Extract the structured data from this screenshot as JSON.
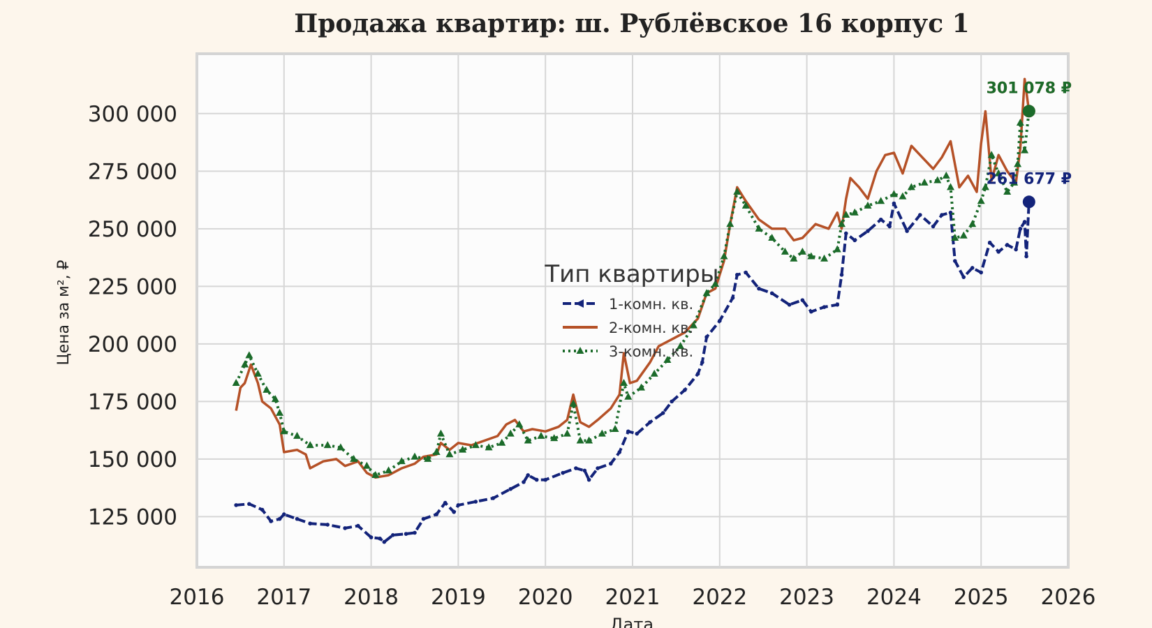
{
  "chart_data": {
    "type": "line",
    "title": "Продажа квартир: ш. Рублёвское 16 корпус 1",
    "xlabel": "Дата",
    "ylabel": "Цена за м², ₽",
    "xlim": [
      2016,
      2026
    ],
    "ylim": [
      103000,
      326000
    ],
    "x_ticks": [
      "2016",
      "2017",
      "2018",
      "2019",
      "2020",
      "2021",
      "2022",
      "2023",
      "2024",
      "2025",
      "2026"
    ],
    "y_ticks": [
      {
        "value": 125000,
        "label": "125 000"
      },
      {
        "value": 150000,
        "label": "150 000"
      },
      {
        "value": 175000,
        "label": "175 000"
      },
      {
        "value": 200000,
        "label": "200 000"
      },
      {
        "value": 225000,
        "label": "225 000"
      },
      {
        "value": 250000,
        "label": "250 000"
      },
      {
        "value": 275000,
        "label": "275 000"
      },
      {
        "value": 300000,
        "label": "300 000"
      }
    ],
    "grid": true,
    "legend": {
      "title": "Тип квартиры",
      "placement": "center"
    },
    "series": [
      {
        "name": "1-комн. кв.",
        "color": "#13237a",
        "style": "dashed-markers",
        "points": [
          [
            2016.45,
            130000
          ],
          [
            2016.6,
            130500
          ],
          [
            2016.75,
            128000
          ],
          [
            2016.85,
            123000
          ],
          [
            2016.95,
            124000
          ],
          [
            2017.0,
            126000
          ],
          [
            2017.15,
            124000
          ],
          [
            2017.3,
            122000
          ],
          [
            2017.5,
            121500
          ],
          [
            2017.7,
            120000
          ],
          [
            2017.85,
            121000
          ],
          [
            2018.0,
            116000
          ],
          [
            2018.1,
            115500
          ],
          [
            2018.15,
            114000
          ],
          [
            2018.25,
            117000
          ],
          [
            2018.4,
            117500
          ],
          [
            2018.5,
            118000
          ],
          [
            2018.6,
            124000
          ],
          [
            2018.75,
            126000
          ],
          [
            2018.85,
            131000
          ],
          [
            2018.95,
            127000
          ],
          [
            2019.0,
            130000
          ],
          [
            2019.2,
            131500
          ],
          [
            2019.4,
            133000
          ],
          [
            2019.6,
            137000
          ],
          [
            2019.75,
            140000
          ],
          [
            2019.8,
            143000
          ],
          [
            2019.9,
            141000
          ],
          [
            2020.0,
            141000
          ],
          [
            2020.2,
            144000
          ],
          [
            2020.35,
            146000
          ],
          [
            2020.45,
            145000
          ],
          [
            2020.5,
            141000
          ],
          [
            2020.6,
            146000
          ],
          [
            2020.75,
            148000
          ],
          [
            2020.85,
            153000
          ],
          [
            2020.95,
            162000
          ],
          [
            2021.05,
            161000
          ],
          [
            2021.2,
            166000
          ],
          [
            2021.35,
            170000
          ],
          [
            2021.45,
            175000
          ],
          [
            2021.6,
            180000
          ],
          [
            2021.75,
            187000
          ],
          [
            2021.8,
            192000
          ],
          [
            2021.85,
            203000
          ],
          [
            2022.0,
            210000
          ],
          [
            2022.15,
            220000
          ],
          [
            2022.2,
            230000
          ],
          [
            2022.3,
            231000
          ],
          [
            2022.45,
            224000
          ],
          [
            2022.6,
            222000
          ],
          [
            2022.8,
            217000
          ],
          [
            2022.95,
            219000
          ],
          [
            2023.05,
            214000
          ],
          [
            2023.2,
            216000
          ],
          [
            2023.35,
            217000
          ],
          [
            2023.4,
            230000
          ],
          [
            2023.45,
            248000
          ],
          [
            2023.55,
            245000
          ],
          [
            2023.7,
            249000
          ],
          [
            2023.85,
            254000
          ],
          [
            2023.95,
            251000
          ],
          [
            2024.0,
            261000
          ],
          [
            2024.15,
            249000
          ],
          [
            2024.3,
            256000
          ],
          [
            2024.45,
            251000
          ],
          [
            2024.55,
            256000
          ],
          [
            2024.65,
            257000
          ],
          [
            2024.7,
            236000
          ],
          [
            2024.8,
            229000
          ],
          [
            2024.9,
            233000
          ],
          [
            2025.0,
            231000
          ],
          [
            2025.1,
            244000
          ],
          [
            2025.2,
            240000
          ],
          [
            2025.3,
            243000
          ],
          [
            2025.4,
            241000
          ],
          [
            2025.45,
            250000
          ],
          [
            2025.5,
            253000
          ],
          [
            2025.52,
            238000
          ],
          [
            2025.55,
            261677
          ]
        ]
      },
      {
        "name": "2-комн. кв.",
        "color": "#b55127",
        "style": "solid",
        "points": [
          [
            2016.45,
            171000
          ],
          [
            2016.5,
            181000
          ],
          [
            2016.55,
            183000
          ],
          [
            2016.62,
            191000
          ],
          [
            2016.7,
            183000
          ],
          [
            2016.75,
            175000
          ],
          [
            2016.85,
            172000
          ],
          [
            2016.95,
            165000
          ],
          [
            2017.0,
            153000
          ],
          [
            2017.15,
            154000
          ],
          [
            2017.25,
            152000
          ],
          [
            2017.3,
            146000
          ],
          [
            2017.45,
            149000
          ],
          [
            2017.6,
            150000
          ],
          [
            2017.7,
            147000
          ],
          [
            2017.85,
            149000
          ],
          [
            2017.95,
            144000
          ],
          [
            2018.05,
            142000
          ],
          [
            2018.2,
            143000
          ],
          [
            2018.35,
            146000
          ],
          [
            2018.5,
            148000
          ],
          [
            2018.6,
            151000
          ],
          [
            2018.75,
            152000
          ],
          [
            2018.8,
            157000
          ],
          [
            2018.9,
            154000
          ],
          [
            2019.0,
            157000
          ],
          [
            2019.15,
            156000
          ],
          [
            2019.3,
            158000
          ],
          [
            2019.45,
            160000
          ],
          [
            2019.55,
            165000
          ],
          [
            2019.65,
            167000
          ],
          [
            2019.75,
            162000
          ],
          [
            2019.85,
            163000
          ],
          [
            2020.0,
            162000
          ],
          [
            2020.15,
            164000
          ],
          [
            2020.25,
            167000
          ],
          [
            2020.32,
            178000
          ],
          [
            2020.4,
            166000
          ],
          [
            2020.5,
            164000
          ],
          [
            2020.6,
            167000
          ],
          [
            2020.75,
            172000
          ],
          [
            2020.85,
            178000
          ],
          [
            2020.9,
            196000
          ],
          [
            2020.97,
            183000
          ],
          [
            2021.05,
            184000
          ],
          [
            2021.2,
            192000
          ],
          [
            2021.3,
            199000
          ],
          [
            2021.45,
            202000
          ],
          [
            2021.6,
            205000
          ],
          [
            2021.75,
            211000
          ],
          [
            2021.85,
            222000
          ],
          [
            2021.95,
            224000
          ],
          [
            2022.05,
            236000
          ],
          [
            2022.12,
            252000
          ],
          [
            2022.2,
            268000
          ],
          [
            2022.3,
            262000
          ],
          [
            2022.45,
            254000
          ],
          [
            2022.6,
            250000
          ],
          [
            2022.75,
            250000
          ],
          [
            2022.85,
            245000
          ],
          [
            2022.95,
            246000
          ],
          [
            2023.1,
            252000
          ],
          [
            2023.25,
            250000
          ],
          [
            2023.35,
            257000
          ],
          [
            2023.4,
            250000
          ],
          [
            2023.45,
            263000
          ],
          [
            2023.5,
            272000
          ],
          [
            2023.6,
            268000
          ],
          [
            2023.7,
            263000
          ],
          [
            2023.8,
            275000
          ],
          [
            2023.9,
            282000
          ],
          [
            2024.0,
            283000
          ],
          [
            2024.1,
            274000
          ],
          [
            2024.2,
            286000
          ],
          [
            2024.3,
            282000
          ],
          [
            2024.45,
            276000
          ],
          [
            2024.55,
            281000
          ],
          [
            2024.65,
            288000
          ],
          [
            2024.75,
            268000
          ],
          [
            2024.85,
            273000
          ],
          [
            2024.95,
            266000
          ],
          [
            2025.0,
            287000
          ],
          [
            2025.05,
            301000
          ],
          [
            2025.12,
            271000
          ],
          [
            2025.2,
            282000
          ],
          [
            2025.3,
            275000
          ],
          [
            2025.4,
            270000
          ],
          [
            2025.45,
            285000
          ],
          [
            2025.5,
            315000
          ],
          [
            2025.55,
            301078
          ]
        ]
      },
      {
        "name": "3-комн. кв.",
        "color": "#1b6b2a",
        "style": "dotted-triangles",
        "points": [
          [
            2016.45,
            183000
          ],
          [
            2016.55,
            191000
          ],
          [
            2016.6,
            195000
          ],
          [
            2016.7,
            187000
          ],
          [
            2016.8,
            180000
          ],
          [
            2016.9,
            176000
          ],
          [
            2016.95,
            170000
          ],
          [
            2017.0,
            162000
          ],
          [
            2017.15,
            160000
          ],
          [
            2017.3,
            156000
          ],
          [
            2017.5,
            156000
          ],
          [
            2017.65,
            155000
          ],
          [
            2017.8,
            150000
          ],
          [
            2017.95,
            147000
          ],
          [
            2018.05,
            143000
          ],
          [
            2018.2,
            145000
          ],
          [
            2018.35,
            149000
          ],
          [
            2018.5,
            151000
          ],
          [
            2018.65,
            150000
          ],
          [
            2018.75,
            153000
          ],
          [
            2018.8,
            161000
          ],
          [
            2018.9,
            152000
          ],
          [
            2019.05,
            154000
          ],
          [
            2019.2,
            156000
          ],
          [
            2019.35,
            155000
          ],
          [
            2019.5,
            157000
          ],
          [
            2019.6,
            161000
          ],
          [
            2019.7,
            165000
          ],
          [
            2019.8,
            158000
          ],
          [
            2019.95,
            160000
          ],
          [
            2020.1,
            159000
          ],
          [
            2020.25,
            161000
          ],
          [
            2020.32,
            174000
          ],
          [
            2020.4,
            158000
          ],
          [
            2020.5,
            158000
          ],
          [
            2020.65,
            161000
          ],
          [
            2020.8,
            163000
          ],
          [
            2020.9,
            183000
          ],
          [
            2020.95,
            177000
          ],
          [
            2021.1,
            181000
          ],
          [
            2021.25,
            187000
          ],
          [
            2021.4,
            193000
          ],
          [
            2021.55,
            199000
          ],
          [
            2021.7,
            208000
          ],
          [
            2021.85,
            222000
          ],
          [
            2021.95,
            226000
          ],
          [
            2022.05,
            238000
          ],
          [
            2022.12,
            252000
          ],
          [
            2022.2,
            266000
          ],
          [
            2022.3,
            260000
          ],
          [
            2022.45,
            250000
          ],
          [
            2022.6,
            246000
          ],
          [
            2022.75,
            240000
          ],
          [
            2022.85,
            237000
          ],
          [
            2022.95,
            240000
          ],
          [
            2023.05,
            238000
          ],
          [
            2023.2,
            237000
          ],
          [
            2023.35,
            241000
          ],
          [
            2023.4,
            252000
          ],
          [
            2023.45,
            256000
          ],
          [
            2023.55,
            257000
          ],
          [
            2023.7,
            260000
          ],
          [
            2023.85,
            262000
          ],
          [
            2024.0,
            265000
          ],
          [
            2024.1,
            264000
          ],
          [
            2024.2,
            268000
          ],
          [
            2024.35,
            270000
          ],
          [
            2024.5,
            271000
          ],
          [
            2024.6,
            273000
          ],
          [
            2024.65,
            268000
          ],
          [
            2024.7,
            246000
          ],
          [
            2024.8,
            247000
          ],
          [
            2024.9,
            252000
          ],
          [
            2025.0,
            262000
          ],
          [
            2025.05,
            268000
          ],
          [
            2025.12,
            282000
          ],
          [
            2025.2,
            274000
          ],
          [
            2025.3,
            266000
          ],
          [
            2025.38,
            270000
          ],
          [
            2025.42,
            278000
          ],
          [
            2025.45,
            296000
          ],
          [
            2025.5,
            284000
          ],
          [
            2025.55,
            301078
          ]
        ]
      }
    ],
    "annotations": [
      {
        "series": 0,
        "x": 2025.55,
        "y": 261677,
        "label": "261 677 ₽"
      },
      {
        "series": 1,
        "x": 2025.55,
        "y": 301078,
        "label": "301 078 ₽"
      },
      {
        "series": 2,
        "x": 2025.55,
        "y": 301078,
        "label": "301 078 ₽"
      }
    ]
  }
}
